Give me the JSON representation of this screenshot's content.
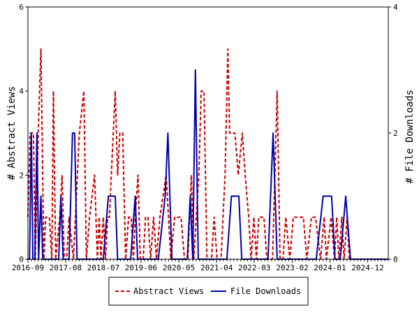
{
  "chart_data": {
    "type": "line",
    "title": "",
    "ylabel_left": "# Abstract Views",
    "ylabel_right": "# File Downloads",
    "ylim_left": [
      0,
      6
    ],
    "ylim_right": [
      0,
      4
    ],
    "yticks_left": [
      "0",
      "2",
      "4",
      "6"
    ],
    "yticks_right": [
      "0",
      "2",
      "4"
    ],
    "x_start": "2016-09",
    "x_end": "2025-06",
    "x_tick_labels": [
      "2016-09",
      "2017-08",
      "2018-07",
      "2019-06",
      "2020-05",
      "2021-04",
      "2022-03",
      "2023-02",
      "2024-01",
      "2024-12"
    ],
    "legend_position": "bottom-center",
    "grid": false,
    "series": [
      {
        "name": "Abstract Views",
        "axis": "left",
        "color": "#cc0000",
        "style": "dashed",
        "points": [
          [
            "2016-09-01",
            1
          ],
          [
            "2016-09-20",
            3
          ],
          [
            "2016-10-20",
            3
          ],
          [
            "2016-11-05",
            0
          ],
          [
            "2016-12-01",
            3
          ],
          [
            "2016-12-25",
            5
          ],
          [
            "2017-01-20",
            0
          ],
          [
            "2017-02-05",
            1
          ],
          [
            "2017-02-20",
            1
          ],
          [
            "2017-03-10",
            1
          ],
          [
            "2017-04-01",
            0
          ],
          [
            "2017-04-15",
            4
          ],
          [
            "2017-05-05",
            0
          ],
          [
            "2017-06-10",
            1
          ],
          [
            "2017-07-01",
            2
          ],
          [
            "2017-07-20",
            0
          ],
          [
            "2017-08-10",
            0
          ],
          [
            "2017-09-01",
            1
          ],
          [
            "2017-10-10",
            0
          ],
          [
            "2017-12-01",
            3
          ],
          [
            "2018-01-10",
            4
          ],
          [
            "2018-02-01",
            0
          ],
          [
            "2018-03-01",
            1
          ],
          [
            "2018-04-15",
            2
          ],
          [
            "2018-05-10",
            0
          ],
          [
            "2018-05-25",
            1
          ],
          [
            "2018-06-10",
            0
          ],
          [
            "2018-07-01",
            1
          ],
          [
            "2018-07-20",
            0
          ],
          [
            "2018-08-10",
            1
          ],
          [
            "2018-08-25",
            1
          ],
          [
            "2018-09-10",
            2
          ],
          [
            "2018-10-15",
            4
          ],
          [
            "2018-11-05",
            2
          ],
          [
            "2018-11-25",
            3
          ],
          [
            "2018-12-20",
            3
          ],
          [
            "2019-01-15",
            0
          ],
          [
            "2019-02-10",
            1
          ],
          [
            "2019-03-05",
            1
          ],
          [
            "2019-03-25",
            0
          ],
          [
            "2019-04-10",
            1
          ],
          [
            "2019-05-05",
            2
          ],
          [
            "2019-05-25",
            0
          ],
          [
            "2019-06-20",
            0
          ],
          [
            "2019-07-10",
            1
          ],
          [
            "2019-08-01",
            1
          ],
          [
            "2019-08-25",
            0
          ],
          [
            "2019-09-20",
            1
          ],
          [
            "2019-10-15",
            0
          ],
          [
            "2019-11-15",
            1
          ],
          [
            "2020-01-10",
            2
          ],
          [
            "2020-02-20",
            0
          ],
          [
            "2020-03-25",
            1
          ],
          [
            "2020-05-20",
            1
          ],
          [
            "2020-06-20",
            0
          ],
          [
            "2020-07-20",
            0
          ],
          [
            "2020-08-20",
            2
          ],
          [
            "2020-09-10",
            0
          ],
          [
            "2020-10-25",
            2
          ],
          [
            "2020-11-15",
            4
          ],
          [
            "2020-12-10",
            4
          ],
          [
            "2021-01-05",
            0
          ],
          [
            "2021-02-15",
            0
          ],
          [
            "2021-03-10",
            1
          ],
          [
            "2021-04-05",
            0
          ],
          [
            "2021-05-10",
            0
          ],
          [
            "2021-06-15",
            2
          ],
          [
            "2021-07-10",
            5
          ],
          [
            "2021-07-25",
            3
          ],
          [
            "2021-09-10",
            3
          ],
          [
            "2021-10-10",
            2
          ],
          [
            "2021-11-15",
            3
          ],
          [
            "2021-12-10",
            2
          ],
          [
            "2022-01-10",
            1
          ],
          [
            "2022-02-01",
            0
          ],
          [
            "2022-02-25",
            1
          ],
          [
            "2022-03-20",
            0
          ],
          [
            "2022-04-10",
            1
          ],
          [
            "2022-05-25",
            1
          ],
          [
            "2022-06-20",
            0
          ],
          [
            "2022-08-10",
            0
          ],
          [
            "2022-09-20",
            4
          ],
          [
            "2022-10-15",
            0
          ],
          [
            "2022-11-10",
            0
          ],
          [
            "2022-12-05",
            1
          ],
          [
            "2023-01-10",
            0
          ],
          [
            "2023-02-10",
            1
          ],
          [
            "2023-05-10",
            1
          ],
          [
            "2023-06-10",
            0
          ],
          [
            "2023-07-20",
            1
          ],
          [
            "2023-08-25",
            1
          ],
          [
            "2023-10-10",
            0
          ],
          [
            "2023-11-10",
            1
          ],
          [
            "2023-12-01",
            0
          ],
          [
            "2024-01-10",
            1
          ],
          [
            "2024-02-10",
            0
          ],
          [
            "2024-03-01",
            1
          ],
          [
            "2024-03-20",
            0
          ],
          [
            "2024-04-15",
            1
          ],
          [
            "2024-05-05",
            0
          ],
          [
            "2024-06-01",
            1
          ],
          [
            "2024-06-20",
            0
          ],
          [
            "2024-07-10",
            0
          ]
        ]
      },
      {
        "name": "File Downloads",
        "axis": "right",
        "color": "#0000aa",
        "style": "solid",
        "points": [
          [
            "2016-09-01",
            0
          ],
          [
            "2016-09-15",
            0
          ],
          [
            "2016-10-01",
            2
          ],
          [
            "2016-10-15",
            0
          ],
          [
            "2016-11-01",
            0
          ],
          [
            "2016-11-20",
            2
          ],
          [
            "2016-12-05",
            0
          ],
          [
            "2016-12-25",
            1
          ],
          [
            "2017-01-10",
            0
          ],
          [
            "2017-02-10",
            0
          ],
          [
            "2017-03-10",
            0
          ],
          [
            "2017-04-10",
            0
          ],
          [
            "2017-05-01",
            0
          ],
          [
            "2017-06-01",
            0
          ],
          [
            "2017-06-20",
            1
          ],
          [
            "2017-07-10",
            0
          ],
          [
            "2017-07-25",
            0
          ],
          [
            "2017-08-10",
            0
          ],
          [
            "2017-09-01",
            0
          ],
          [
            "2017-10-01",
            2
          ],
          [
            "2017-10-20",
            2
          ],
          [
            "2017-11-10",
            0
          ],
          [
            "2017-12-01",
            0
          ],
          [
            "2018-01-01",
            0
          ],
          [
            "2018-03-01",
            0
          ],
          [
            "2018-05-01",
            0
          ],
          [
            "2018-07-01",
            0
          ],
          [
            "2018-08-15",
            1
          ],
          [
            "2018-10-15",
            1
          ],
          [
            "2018-11-05",
            0
          ],
          [
            "2019-01-01",
            0
          ],
          [
            "2019-03-01",
            0
          ],
          [
            "2019-04-10",
            1
          ],
          [
            "2019-05-01",
            0
          ],
          [
            "2019-07-01",
            0
          ],
          [
            "2019-09-01",
            0
          ],
          [
            "2019-11-01",
            0
          ],
          [
            "2020-01-01",
            1
          ],
          [
            "2020-01-25",
            2
          ],
          [
            "2020-03-01",
            0
          ],
          [
            "2020-04-15",
            0
          ],
          [
            "2020-06-01",
            0
          ],
          [
            "2020-07-15",
            0
          ],
          [
            "2020-08-10",
            1
          ],
          [
            "2020-09-01",
            0
          ],
          [
            "2020-09-25",
            3
          ],
          [
            "2020-10-20",
            0
          ],
          [
            "2020-12-01",
            0
          ],
          [
            "2021-02-01",
            0
          ],
          [
            "2021-04-01",
            0
          ],
          [
            "2021-06-01",
            0
          ],
          [
            "2021-07-01",
            0
          ],
          [
            "2021-08-10",
            1
          ],
          [
            "2021-10-15",
            1
          ],
          [
            "2021-11-10",
            0
          ],
          [
            "2022-01-01",
            0
          ],
          [
            "2022-03-01",
            0
          ],
          [
            "2022-05-01",
            0
          ],
          [
            "2022-07-01",
            0
          ],
          [
            "2022-08-15",
            2
          ],
          [
            "2022-09-20",
            0
          ],
          [
            "2022-11-01",
            0
          ],
          [
            "2023-01-01",
            0
          ],
          [
            "2023-03-01",
            0
          ],
          [
            "2023-05-01",
            0
          ],
          [
            "2023-07-01",
            0
          ],
          [
            "2023-09-01",
            0
          ],
          [
            "2023-11-01",
            1
          ],
          [
            "2024-01-15",
            1
          ],
          [
            "2024-02-15",
            0
          ],
          [
            "2024-04-01",
            0
          ],
          [
            "2024-05-20",
            1
          ],
          [
            "2024-07-01",
            0
          ],
          [
            "2024-09-01",
            0
          ],
          [
            "2024-11-01",
            0
          ],
          [
            "2025-01-01",
            0
          ],
          [
            "2025-03-01",
            0
          ],
          [
            "2025-06-01",
            0
          ]
        ]
      }
    ]
  }
}
